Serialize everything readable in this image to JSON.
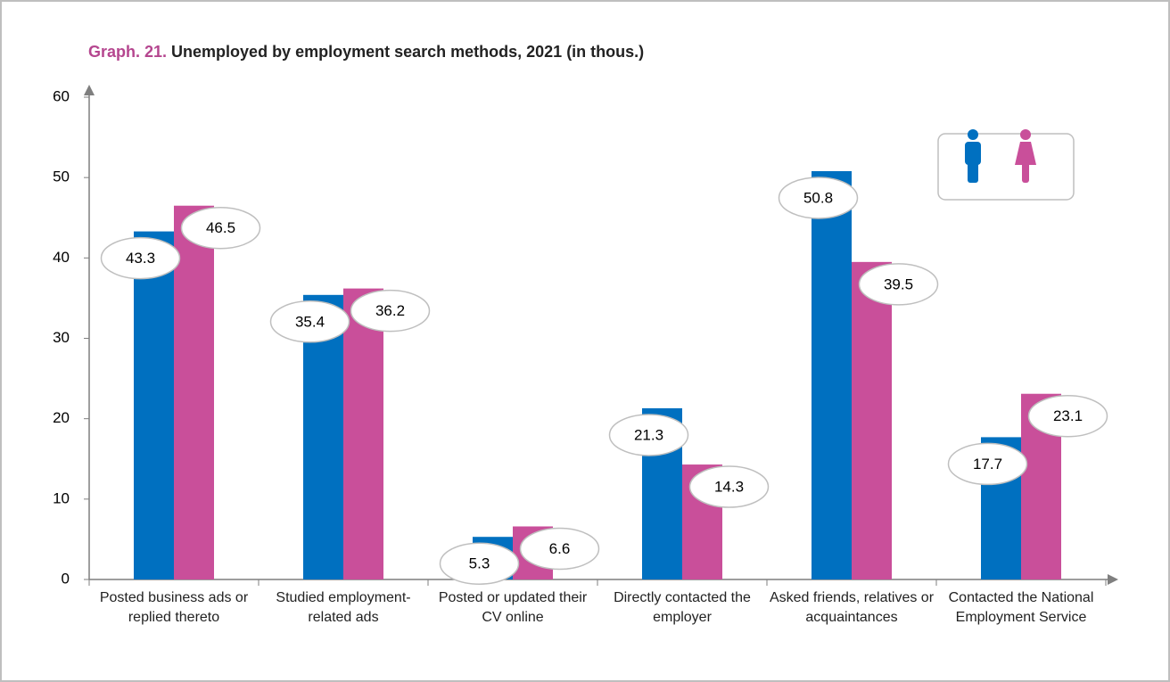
{
  "chart_data": {
    "type": "bar",
    "label": "Graph. 21.",
    "title": "Unemployed by employment search methods, 2021 (in thous.)",
    "categories": [
      "Posted business ads or replied thereto",
      "Studied employment-related ads",
      "Posted or updated their CV online",
      "Directly contacted the employer",
      "Asked friends, relatives or acquaintances",
      "Contacted the National Employment Service"
    ],
    "series": [
      {
        "color": "#0070c0",
        "values": [
          43.3,
          35.4,
          5.3,
          21.3,
          50.8,
          17.7
        ]
      },
      {
        "color": "#c94f9a",
        "values": [
          46.5,
          36.2,
          6.6,
          14.3,
          39.5,
          23.1
        ]
      }
    ],
    "ylim": [
      0,
      60
    ],
    "yticks": [
      0,
      10,
      20,
      30,
      40,
      50,
      60
    ]
  }
}
